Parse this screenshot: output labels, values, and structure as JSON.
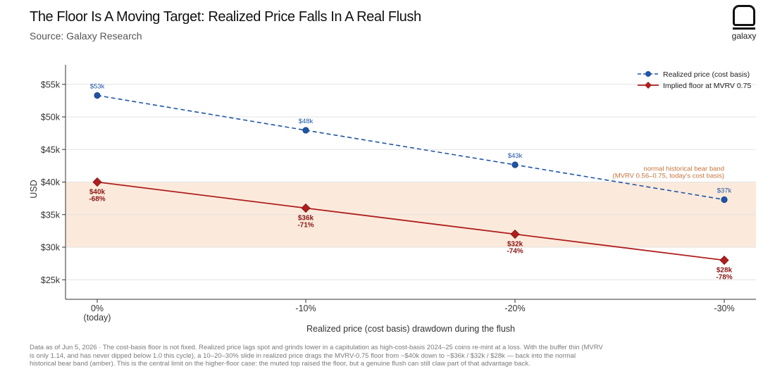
{
  "header": {
    "title": "The Floor Is A Moving Target: Realized Price Falls In A Real Flush",
    "subtitle": "Source: Galaxy Research"
  },
  "logo": {
    "icon": "galaxy-logo-icon",
    "text": "galaxy"
  },
  "chart_data": {
    "type": "line",
    "title": "The Floor Is A Moving Target: Realized Price Falls In A Real Flush",
    "xlabel": "Realized price (cost basis) drawdown during the flush",
    "ylabel": "USD",
    "categories": [
      "0%\n(today)",
      "-10%",
      "-20%",
      "-30%"
    ],
    "ylim": [
      22000,
      58000
    ],
    "yticks": [
      25000,
      30000,
      35000,
      40000,
      45000,
      50000,
      55000
    ],
    "ytick_labels": [
      "$25k",
      "$30k",
      "$35k",
      "$40k",
      "$45k",
      "$50k",
      "$55k"
    ],
    "grid": "horizontal",
    "legend": "top-right",
    "series": [
      {
        "name": "Realized price (cost basis)",
        "values": [
          53300,
          47950,
          42650,
          37300
        ],
        "labels": [
          "$53k",
          "$48k",
          "$43k",
          "$37k"
        ],
        "color": "#1f55a5",
        "style": "dashed",
        "marker": "circle"
      },
      {
        "name": "Implied floor at MVRV 0.75",
        "values": [
          40000,
          36000,
          32000,
          28000
        ],
        "labels": [
          "$40k",
          "$36k",
          "$32k",
          "$28k"
        ],
        "sublabels": [
          "-68%",
          "-71%",
          "-74%",
          "-78%"
        ],
        "color": "#b01e1e",
        "style": "solid",
        "marker": "diamond"
      }
    ],
    "band": {
      "range": [
        30000,
        40000
      ],
      "color": "#fbeadb",
      "label_line1": "normal historical bear band",
      "label_line2": "(MVRV 0.56–0.75, today's cost basis)",
      "label_color": "#c4743a"
    }
  },
  "footnote": "Data as of Jun 5, 2026 · The cost-basis floor is not fixed. Realized price lags spot and grinds lower in a capitulation as high-cost-basis 2024–25 coins re-mint at a loss. With the buffer thin (MVRV is only 1.14, and has never dipped below 1.0 this cycle), a 10–20–30% slide in realized price drags the MVRV-0.75 floor from ~$40k down to ~$36k / $32k / $28k — back into the normal historical bear band (amber). This is the central limit on the higher-floor case: the muted top raised the floor, but a genuine flush can still claw part of that advantage back."
}
